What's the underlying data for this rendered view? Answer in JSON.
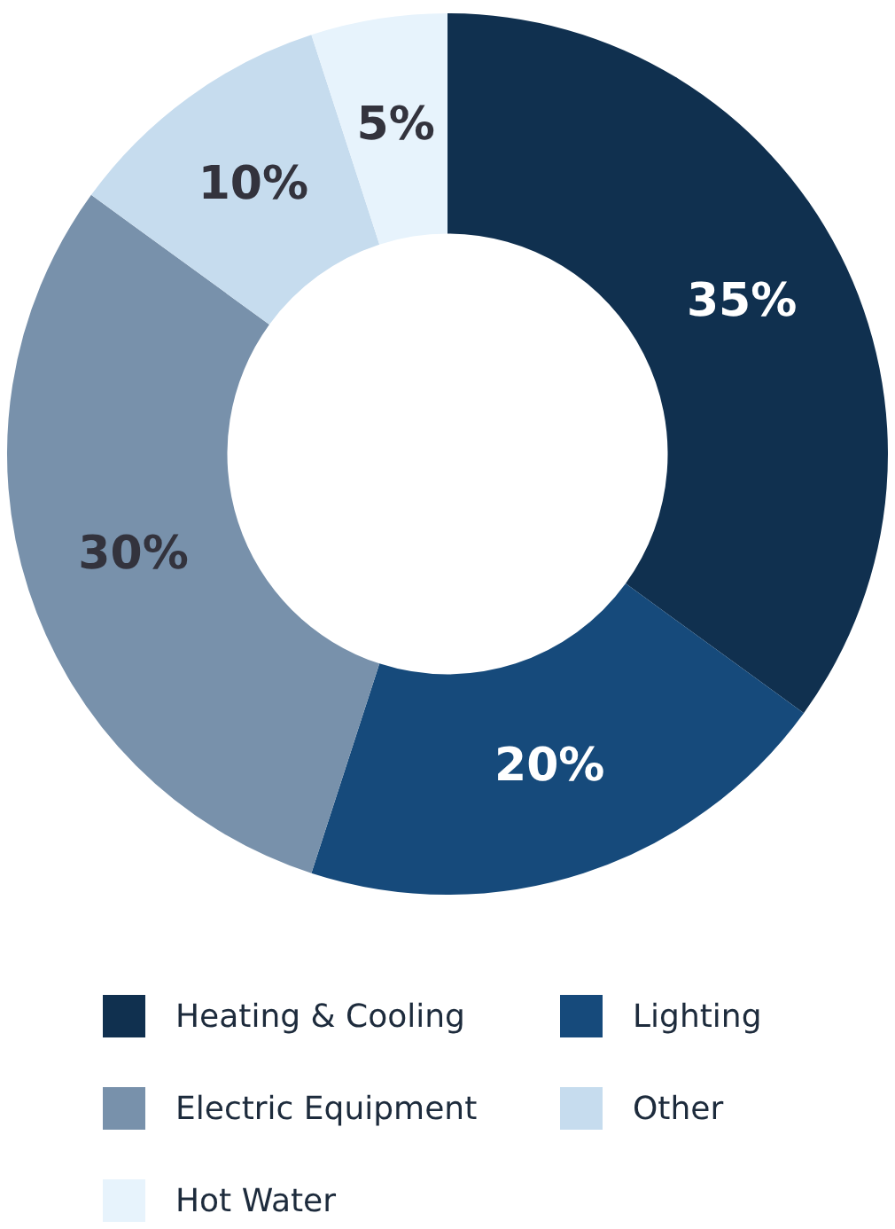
{
  "chart_data": {
    "type": "donut",
    "categories": [
      "Heating & Cooling",
      "Lighting",
      "Electric Equipment",
      "Other",
      "Hot Water"
    ],
    "values": [
      35,
      20,
      30,
      10,
      5
    ],
    "colors": [
      "#10304f",
      "#164a7b",
      "#7891ab",
      "#c6dcee",
      "#e7f3fc"
    ],
    "value_labels": [
      "35%",
      "20%",
      "30%",
      "10%",
      "5%"
    ],
    "legend": "bottom"
  }
}
